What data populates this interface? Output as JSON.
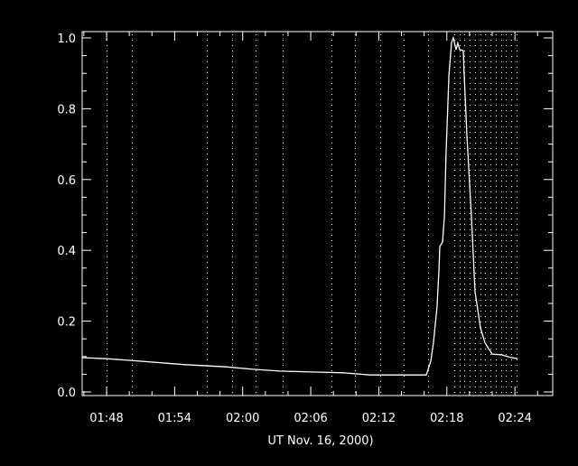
{
  "chart_data": {
    "type": "line",
    "title": "",
    "xlabel": "UT Nov. 16, 2000)",
    "ylabel": "",
    "xlim": [
      "01:45:51",
      "02:27:20"
    ],
    "ylim": [
      0,
      1.02
    ],
    "x_tick_labels": [
      "01:48",
      "01:54",
      "02:00",
      "02:06",
      "02:12",
      "02:18",
      "02:24"
    ],
    "y_tick_labels": [
      "0.0",
      "0.2",
      "0.4",
      "0.6",
      "0.8",
      "1.0"
    ],
    "grid": false,
    "colors": {
      "background": "#000000",
      "foreground": "#ffffff"
    },
    "marker_lines": [
      "01:48:00",
      "01:50:12",
      "01:56:52",
      "01:59:03",
      "02:01:10",
      "02:03:32",
      "02:07:48",
      "02:09:55",
      "02:12:06",
      "02:14:13",
      "02:16:19"
    ],
    "dense_marker_range": [
      "02:18:39",
      "02:24:14"
    ],
    "series": [
      {
        "x": [
          "01:45:51",
          "01:48:00",
          "01:50:09",
          "01:54:56",
          "01:58:31",
          "02:00:54",
          "02:03:17",
          "02:06:28",
          "02:08:52",
          "02:11:15",
          "02:16:11",
          "02:16:35",
          "02:16:49",
          "02:17:08",
          "02:17:18",
          "02:17:23",
          "02:17:37",
          "02:17:47",
          "02:17:56",
          "02:18:11",
          "02:18:25",
          "02:18:34",
          "02:18:49",
          "02:18:58",
          "02:19:08",
          "02:19:27",
          "02:19:32",
          "02:19:46",
          "02:20:10",
          "02:20:29",
          "02:20:58",
          "02:21:22",
          "02:22:00",
          "02:22:47",
          "02:23:35",
          "02:24:14"
        ],
        "y": [
          0.097,
          0.094,
          0.089,
          0.077,
          0.071,
          0.064,
          0.059,
          0.056,
          0.054,
          0.048,
          0.048,
          0.087,
          0.138,
          0.24,
          0.342,
          0.411,
          0.423,
          0.495,
          0.673,
          0.895,
          0.987,
          1.0,
          0.967,
          0.985,
          0.967,
          0.964,
          0.895,
          0.724,
          0.495,
          0.283,
          0.181,
          0.138,
          0.107,
          0.105,
          0.098,
          0.094
        ]
      }
    ]
  }
}
